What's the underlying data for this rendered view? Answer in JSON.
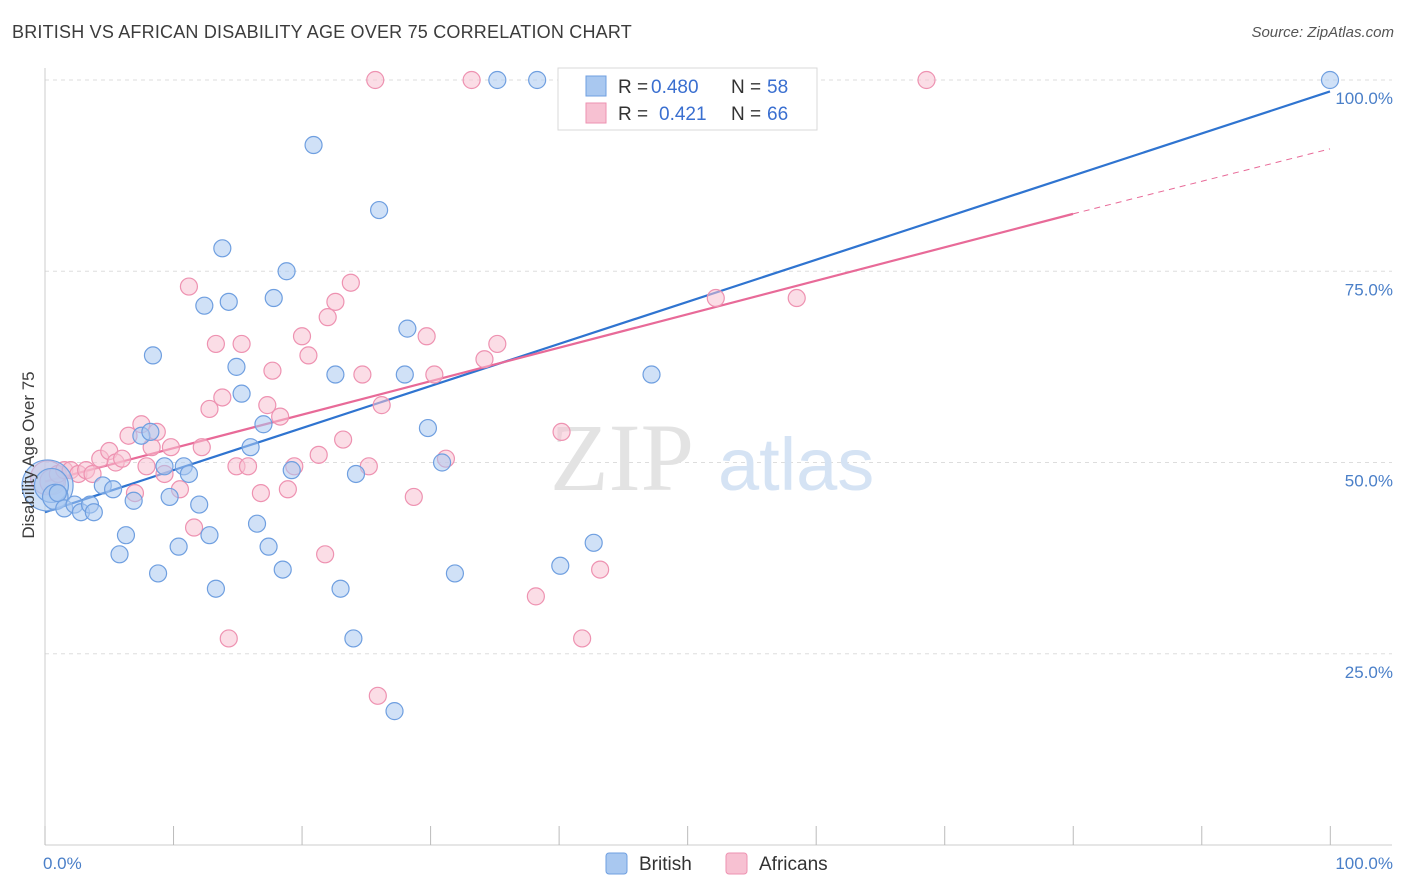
{
  "title": "BRITISH VS AFRICAN DISABILITY AGE OVER 75 CORRELATION CHART",
  "source": "Source: ZipAtlas.com",
  "watermark": {
    "zip": "ZIP",
    "atlas": "atlas"
  },
  "colors": {
    "british_fill": "#a9c8f0",
    "british_stroke": "#6f9fe0",
    "british_line": "#2f74d0",
    "africans_fill": "#f7c1d2",
    "africans_stroke": "#ee92b1",
    "africans_line": "#e86a98",
    "grid": "#dddddd",
    "tick_text": "#4a7fc8"
  },
  "legend": {
    "rows": [
      {
        "r_label": "R =",
        "r_value": "0.480",
        "n_label": "N =",
        "n_value": "58"
      },
      {
        "r_label": "R =",
        "r_value": "0.421",
        "n_label": "N =",
        "n_value": "66"
      }
    ]
  },
  "bottom_legend": [
    "British",
    "Africans"
  ],
  "chart_data": {
    "type": "scatter",
    "title": "BRITISH VS AFRICAN DISABILITY AGE OVER 75 CORRELATION CHART",
    "xlabel": "",
    "ylabel": "Disability Age Over 75",
    "xlim": [
      0,
      100
    ],
    "ylim": [
      0,
      100
    ],
    "x_tick_labels": [
      "0.0%",
      "100.0%"
    ],
    "y_ticks": [
      25,
      50,
      75,
      100
    ],
    "y_tick_labels": [
      "25.0%",
      "50.0%",
      "75.0%",
      "100.0%"
    ],
    "grid": true,
    "legend_position": "top-center",
    "series": [
      {
        "name": "British",
        "R": 0.48,
        "N": 58,
        "trend": {
          "x": [
            0,
            100
          ],
          "y": [
            43.5,
            98.5
          ]
        },
        "points": [
          [
            0.2,
            47,
            3
          ],
          [
            0.5,
            47,
            2
          ],
          [
            0.8,
            45.5,
            1.5
          ],
          [
            1.0,
            46,
            1
          ],
          [
            1.5,
            44,
            1
          ],
          [
            2.3,
            44.5,
            1
          ],
          [
            2.8,
            43.5,
            1
          ],
          [
            3.5,
            44.5,
            1
          ],
          [
            3.8,
            43.5,
            1
          ],
          [
            4.5,
            47,
            1
          ],
          [
            5.3,
            46.5,
            1
          ],
          [
            5.8,
            38,
            1
          ],
          [
            6.3,
            40.5,
            1
          ],
          [
            6.9,
            45,
            1
          ],
          [
            7.5,
            53.5,
            1
          ],
          [
            8.2,
            54,
            1
          ],
          [
            8.4,
            64,
            1
          ],
          [
            8.8,
            35.5,
            1
          ],
          [
            9.3,
            49.5,
            1
          ],
          [
            9.7,
            45.5,
            1
          ],
          [
            10.4,
            39,
            1
          ],
          [
            10.8,
            49.5,
            1
          ],
          [
            11.2,
            48.5,
            1
          ],
          [
            12.0,
            44.5,
            1
          ],
          [
            12.4,
            70.5,
            1
          ],
          [
            12.8,
            40.5,
            1
          ],
          [
            13.3,
            33.5,
            1
          ],
          [
            13.8,
            78,
            1
          ],
          [
            14.3,
            71,
            1
          ],
          [
            14.9,
            62.5,
            1
          ],
          [
            15.3,
            59,
            1
          ],
          [
            16.0,
            52,
            1
          ],
          [
            16.5,
            42,
            1
          ],
          [
            17.0,
            55,
            1
          ],
          [
            17.4,
            39,
            1
          ],
          [
            17.8,
            71.5,
            1
          ],
          [
            18.5,
            36,
            1
          ],
          [
            18.8,
            75,
            1
          ],
          [
            19.2,
            49,
            1
          ],
          [
            20.9,
            91.5,
            1
          ],
          [
            22.6,
            61.5,
            1
          ],
          [
            23.0,
            33.5,
            1
          ],
          [
            24.0,
            27,
            1
          ],
          [
            24.2,
            48.5,
            1
          ],
          [
            26.0,
            83,
            1
          ],
          [
            27.2,
            17.5,
            1
          ],
          [
            28.0,
            61.5,
            1
          ],
          [
            28.2,
            67.5,
            1
          ],
          [
            29.8,
            54.5,
            1
          ],
          [
            30.9,
            50,
            1
          ],
          [
            31.9,
            35.5,
            1
          ],
          [
            35.2,
            100,
            1
          ],
          [
            38.3,
            100,
            1
          ],
          [
            40.1,
            36.5,
            1
          ],
          [
            42.7,
            39.5,
            1
          ],
          [
            47.2,
            61.5,
            1
          ],
          [
            52.0,
            100,
            1
          ],
          [
            100.0,
            100,
            1
          ]
        ]
      },
      {
        "name": "Africans",
        "R": 0.421,
        "N": 66,
        "trend": {
          "x": [
            0,
            80
          ],
          "y": [
            47.5,
            82.5
          ]
        },
        "trend_dashed": {
          "x": [
            80,
            100
          ],
          "y": [
            82.5,
            91
          ]
        },
        "points": [
          [
            0.2,
            48,
            2
          ],
          [
            0.6,
            47.5,
            1.5
          ],
          [
            1.0,
            48.5,
            1
          ],
          [
            1.5,
            49,
            1
          ],
          [
            2.0,
            49,
            1
          ],
          [
            2.6,
            48.5,
            1
          ],
          [
            3.2,
            49,
            1
          ],
          [
            3.7,
            48.5,
            1
          ],
          [
            4.3,
            50.5,
            1
          ],
          [
            5.0,
            51.5,
            1
          ],
          [
            5.5,
            50,
            1
          ],
          [
            6.0,
            50.5,
            1
          ],
          [
            6.5,
            53.5,
            1
          ],
          [
            7.0,
            46,
            1
          ],
          [
            7.5,
            55,
            1
          ],
          [
            7.9,
            49.5,
            1
          ],
          [
            8.3,
            52,
            1
          ],
          [
            8.7,
            54,
            1
          ],
          [
            9.3,
            48.5,
            1
          ],
          [
            9.8,
            52,
            1
          ],
          [
            10.5,
            46.5,
            1
          ],
          [
            11.2,
            73,
            1
          ],
          [
            11.6,
            41.5,
            1
          ],
          [
            12.2,
            52,
            1
          ],
          [
            12.8,
            57,
            1
          ],
          [
            13.3,
            65.5,
            1
          ],
          [
            13.8,
            58.5,
            1
          ],
          [
            14.3,
            27,
            1
          ],
          [
            14.9,
            49.5,
            1
          ],
          [
            15.3,
            65.5,
            1
          ],
          [
            15.8,
            49.5,
            1
          ],
          [
            16.8,
            46,
            1
          ],
          [
            17.3,
            57.5,
            1
          ],
          [
            17.7,
            62,
            1
          ],
          [
            18.3,
            56,
            1
          ],
          [
            18.9,
            46.5,
            1
          ],
          [
            19.4,
            49.5,
            1
          ],
          [
            20.0,
            66.5,
            1
          ],
          [
            20.5,
            64,
            1
          ],
          [
            21.3,
            51,
            1
          ],
          [
            21.8,
            38,
            1
          ],
          [
            22.0,
            69,
            1
          ],
          [
            22.6,
            71,
            1
          ],
          [
            23.2,
            53,
            1
          ],
          [
            23.8,
            73.5,
            1
          ],
          [
            24.7,
            61.5,
            1
          ],
          [
            25.2,
            49.5,
            1
          ],
          [
            25.7,
            100,
            1
          ],
          [
            25.9,
            19.5,
            1
          ],
          [
            26.2,
            57.5,
            1
          ],
          [
            28.7,
            45.5,
            1
          ],
          [
            29.7,
            66.5,
            1
          ],
          [
            30.3,
            61.5,
            1
          ],
          [
            31.2,
            50.5,
            1
          ],
          [
            33.2,
            100,
            1
          ],
          [
            34.2,
            63.5,
            1
          ],
          [
            35.2,
            65.5,
            1
          ],
          [
            38.2,
            32.5,
            1
          ],
          [
            40.2,
            54,
            1
          ],
          [
            41.8,
            27,
            1
          ],
          [
            43.2,
            36,
            1
          ],
          [
            52.2,
            71.5,
            1
          ],
          [
            57.5,
            100,
            1
          ],
          [
            58.5,
            71.5,
            1
          ],
          [
            68.6,
            100,
            1
          ]
        ]
      }
    ]
  }
}
